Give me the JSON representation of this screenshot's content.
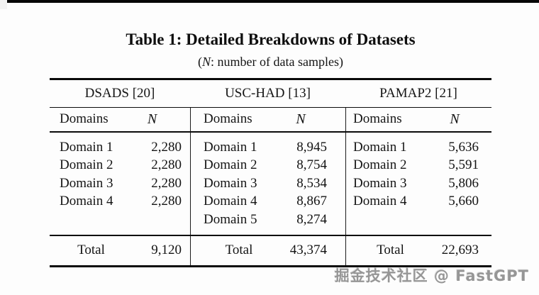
{
  "title": "Table 1: Detailed Breakdowns of Datasets",
  "subtitle": {
    "open": "(",
    "n": "N",
    "rest": ": number of data samples)"
  },
  "table": {
    "col_domains": "Domains",
    "col_n": "N",
    "total_label": "Total",
    "groups": [
      {
        "name": "DSADS [20]",
        "rows": [
          {
            "d": "Domain 1",
            "n": "2,280"
          },
          {
            "d": "Domain 2",
            "n": "2,280"
          },
          {
            "d": "Domain 3",
            "n": "2,280"
          },
          {
            "d": "Domain 4",
            "n": "2,280"
          }
        ],
        "total": "9,120"
      },
      {
        "name": "USC-HAD [13]",
        "rows": [
          {
            "d": "Domain 1",
            "n": "8,945"
          },
          {
            "d": "Domain 2",
            "n": "8,754"
          },
          {
            "d": "Domain 3",
            "n": "8,534"
          },
          {
            "d": "Domain 4",
            "n": "8,867"
          },
          {
            "d": "Domain 5",
            "n": "8,274"
          }
        ],
        "total": "43,374"
      },
      {
        "name": "PAMAP2 [21]",
        "rows": [
          {
            "d": "Domain 1",
            "n": "5,636"
          },
          {
            "d": "Domain 2",
            "n": "5,591"
          },
          {
            "d": "Domain 3",
            "n": "5,806"
          },
          {
            "d": "Domain 4",
            "n": "5,660"
          }
        ],
        "total": "22,693"
      }
    ]
  },
  "watermark": {
    "text": "掘金技术社区 @ FastGPT"
  },
  "colors": {
    "text": "#141414",
    "rule": "#0a0a0a",
    "watermark": "#969696",
    "background": "#fdfdfd"
  }
}
